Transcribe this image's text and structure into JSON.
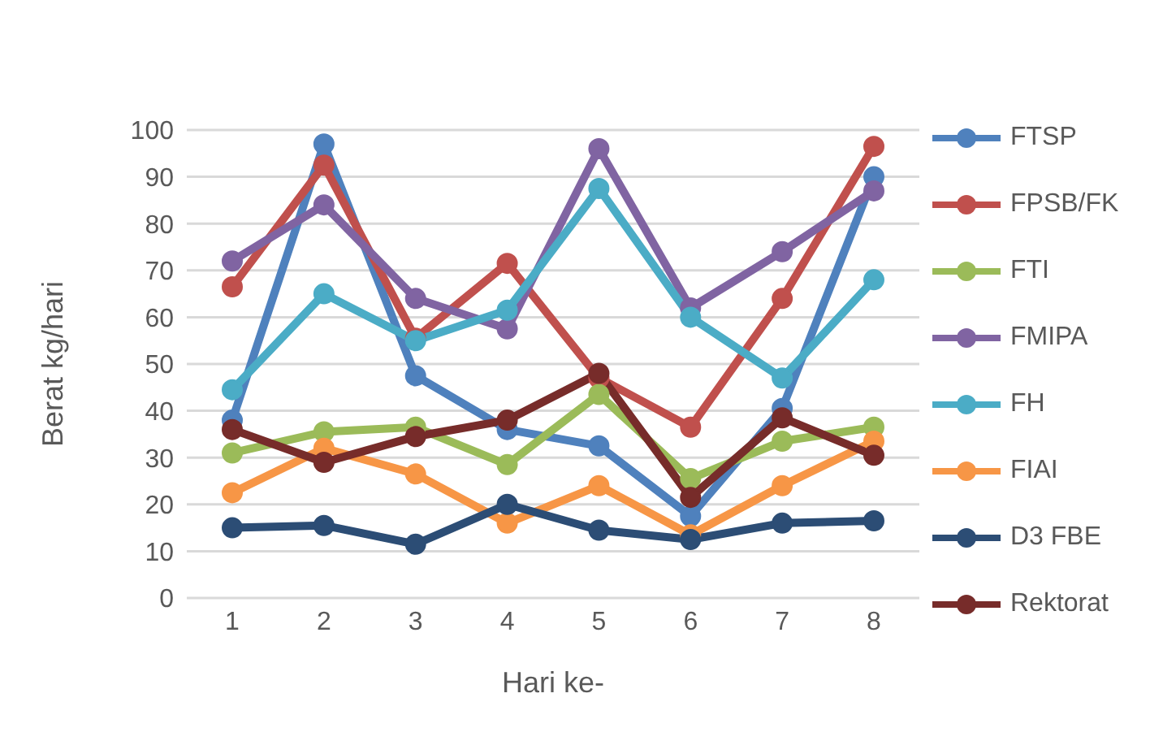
{
  "chart_data": {
    "type": "line",
    "xlabel": "Hari ke-",
    "ylabel": "Berat kg/hari",
    "categories": [
      "1",
      "2",
      "3",
      "4",
      "5",
      "6",
      "7",
      "8"
    ],
    "ylim": [
      0,
      100
    ],
    "yticks": [
      0,
      10,
      20,
      30,
      40,
      50,
      60,
      70,
      80,
      90,
      100
    ],
    "grid": "y",
    "legend": "right",
    "marker": "circle",
    "series": [
      {
        "name": "FTSP",
        "color": "#4f81bd",
        "values": [
          38,
          97,
          47.5,
          36,
          32.5,
          17.5,
          40.5,
          90
        ]
      },
      {
        "name": "FPSB/FK",
        "color": "#c0504d",
        "values": [
          66.5,
          92.5,
          55.5,
          71.5,
          47,
          36.5,
          64,
          96.5
        ]
      },
      {
        "name": "FTI",
        "color": "#9bbb59",
        "values": [
          31,
          35.5,
          36.5,
          28.5,
          43.5,
          25.5,
          33.5,
          36.5
        ]
      },
      {
        "name": "FMIPA",
        "color": "#8064a2",
        "values": [
          72,
          84,
          64,
          57.5,
          96,
          62,
          74,
          87
        ]
      },
      {
        "name": "FH",
        "color": "#4bacc6",
        "values": [
          44.5,
          65,
          55,
          61.5,
          87.5,
          60,
          47,
          68
        ]
      },
      {
        "name": "FIAI",
        "color": "#f79646",
        "values": [
          22.5,
          32,
          26.5,
          16,
          24,
          13.5,
          24,
          33.5
        ]
      },
      {
        "name": "D3 FBE",
        "color": "#2c4d75",
        "values": [
          15,
          15.5,
          11.5,
          20,
          14.5,
          12.5,
          16,
          16.5
        ]
      },
      {
        "name": "Rektorat",
        "color": "#772c2a",
        "values": [
          36,
          29,
          34.5,
          38,
          48,
          21.5,
          38.5,
          30.5
        ]
      }
    ]
  }
}
